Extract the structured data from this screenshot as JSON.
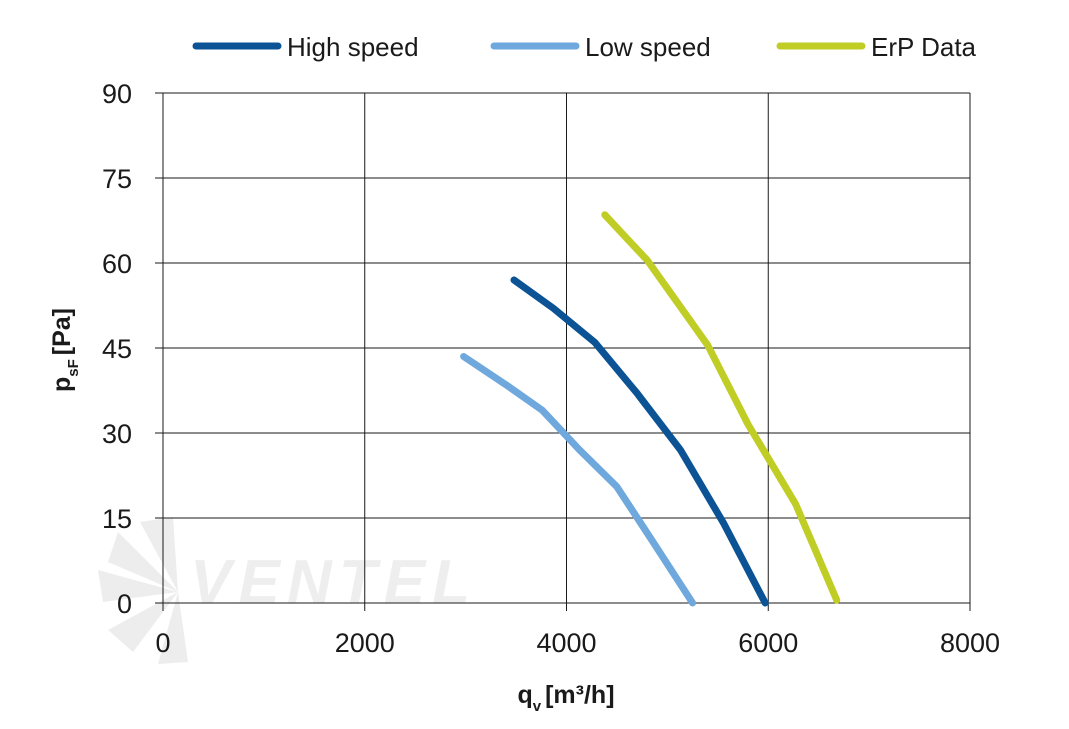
{
  "chart_data": {
    "type": "line",
    "xlabel_main": "q",
    "xlabel_sub": "v",
    "xlabel_unit": "[m³/h]",
    "ylabel_main": "p",
    "ylabel_sub": "sF",
    "ylabel_unit": "[Pa]",
    "xlim": [
      0,
      8000
    ],
    "ylim": [
      0,
      90
    ],
    "xticks": [
      0,
      2000,
      4000,
      6000,
      8000
    ],
    "yticks": [
      0,
      15,
      30,
      45,
      60,
      75,
      90
    ],
    "grid": true,
    "legend_position": "top",
    "series": [
      {
        "name": "High speed",
        "color": "#0b5394",
        "x": [
          3480,
          3870,
          4280,
          4700,
          5130,
          5560,
          5970
        ],
        "y": [
          57,
          52,
          46,
          37,
          27,
          14,
          0
        ]
      },
      {
        "name": "Low speed",
        "color": "#6fa8dc",
        "x": [
          2980,
          3400,
          3760,
          4130,
          4500,
          4850,
          5250
        ],
        "y": [
          43.5,
          38.5,
          34,
          27,
          20.5,
          11,
          0
        ]
      },
      {
        "name": "ErP Data",
        "color": "#bfcd24",
        "x": [
          4380,
          4800,
          5100,
          5400,
          5800,
          6270,
          6680
        ],
        "y": [
          68.5,
          60.5,
          53,
          45.5,
          31.5,
          17.5,
          0.5
        ]
      }
    ]
  },
  "watermark": {
    "text": "VENTEL"
  }
}
